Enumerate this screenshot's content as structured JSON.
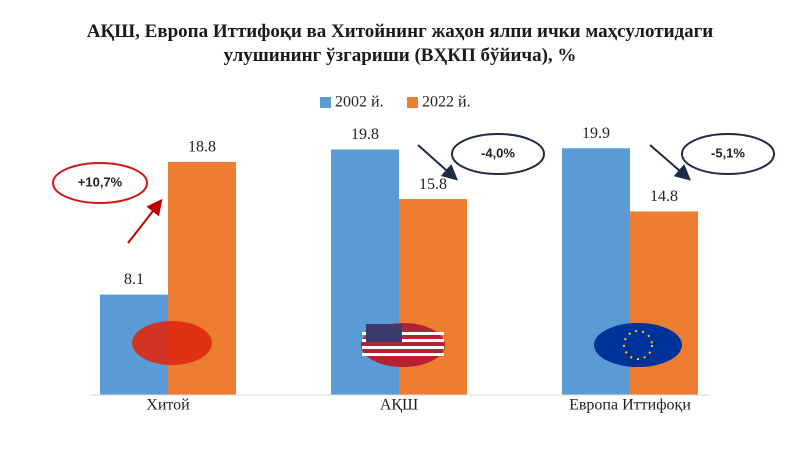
{
  "chart_data": {
    "type": "bar",
    "title": "АҚШ, Европа Иттифоқи ва Хитойнинг жаҳон ялпи ички маҳсулотидаги улушининг ўзгариши (ВҲКП бўйича), %",
    "categories": [
      "Хитой",
      "АҚШ",
      "Европа Иттифоқи"
    ],
    "series": [
      {
        "name": "2002 й.",
        "color": "#5b9bd5",
        "values": [
          8.1,
          19.8,
          19.9
        ]
      },
      {
        "name": "2022 й.",
        "color": "#ed7d31",
        "values": [
          18.8,
          15.8,
          14.8
        ]
      }
    ],
    "ylim": [
      0,
      20
    ],
    "legend": "top",
    "annotations": [
      "+10,7%",
      "-4,0%",
      "-5,1%"
    ]
  }
}
